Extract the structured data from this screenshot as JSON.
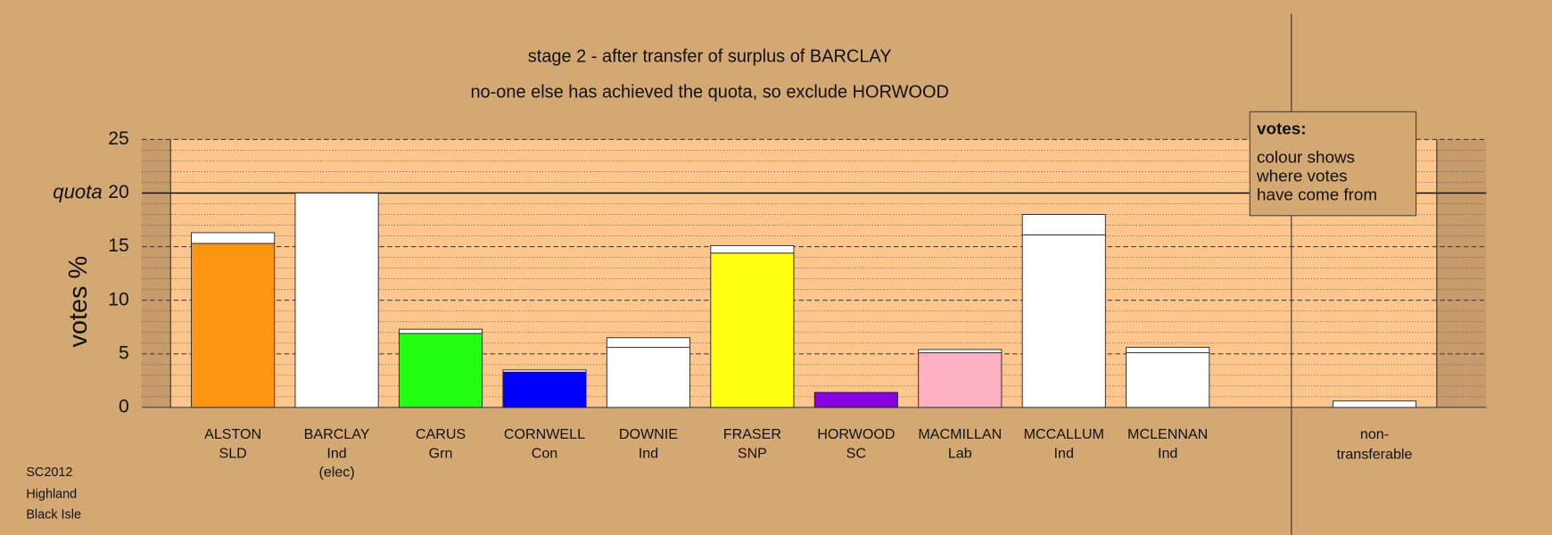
{
  "chart_data": {
    "type": "bar",
    "title": "stage 2 - after transfer of surplus of BARCLAY",
    "subtitle": "no-one else has achieved the quota, so exclude HORWOOD",
    "y_label": "votes %",
    "categories": [
      [
        "ALSTON",
        "SLD"
      ],
      [
        "BARCLAY",
        "Ind",
        "(elec)"
      ],
      [
        "CARUS",
        "Grn"
      ],
      [
        "CORNWELL",
        "Con"
      ],
      [
        "DOWNIE",
        "Ind"
      ],
      [
        "FRASER",
        "SNP"
      ],
      [
        "HORWOOD",
        "SC"
      ],
      [
        "MACMILLAN",
        "Lab"
      ],
      [
        "MCCALLUM",
        "Ind"
      ],
      [
        "MCLENNAN",
        "Ind"
      ]
    ],
    "series": [
      {
        "colors": [
          "#ff9411",
          "#ffffff",
          "#22ff11",
          "#0000ff",
          "#ffffff",
          "#ffff11",
          "#8800dd",
          "#ffb0c0",
          "#ffffff",
          "#ffffff"
        ],
        "values": [
          15.3,
          20,
          6.9,
          3.3,
          5.6,
          14.4,
          1.4,
          5.1,
          16.1,
          5.1
        ]
      },
      {
        "color": "#ffffff",
        "values": [
          1.0,
          0,
          0.4,
          0.2,
          0.9,
          0.7,
          0,
          0.3,
          1.9,
          0.5
        ]
      }
    ],
    "nontransferable": {
      "label": [
        "non-",
        "transferable"
      ],
      "value": 0.6,
      "color": "#ffffff"
    },
    "quota": {
      "value": 20,
      "label": "quota"
    },
    "ylim": [
      0,
      25
    ],
    "yticks": [
      0,
      5,
      10,
      15,
      20,
      25
    ],
    "yminorticks": [
      1,
      2,
      3,
      4,
      6,
      7,
      8,
      9,
      11,
      12,
      13,
      14,
      16,
      17,
      18,
      19,
      21,
      22,
      23,
      24
    ],
    "grid": true,
    "legend": {
      "title": "votes:",
      "lines": [
        "colour shows",
        "where votes",
        "have come from"
      ]
    },
    "footer": [
      "SC2012",
      "Highland",
      "Black Isle"
    ]
  }
}
